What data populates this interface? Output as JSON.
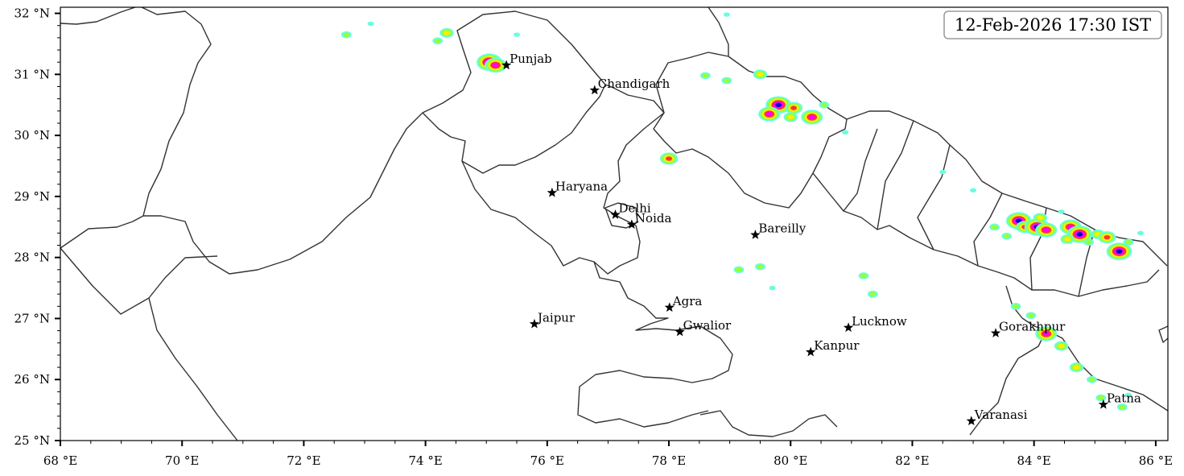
{
  "map": {
    "timestamp": "12-Feb-2026 17:30 IST",
    "extent": {
      "lon_min": 68,
      "lon_max": 86.2,
      "lat_min": 25,
      "lat_max": 32.1
    },
    "x_ticks": [
      {
        "lon": 68,
        "label": "68 °E"
      },
      {
        "lon": 70,
        "label": "70 °E"
      },
      {
        "lon": 72,
        "label": "72 °E"
      },
      {
        "lon": 74,
        "label": "74 °E"
      },
      {
        "lon": 76,
        "label": "76 °E"
      },
      {
        "lon": 78,
        "label": "78 °E"
      },
      {
        "lon": 80,
        "label": "80 °E"
      },
      {
        "lon": 82,
        "label": "82 °E"
      },
      {
        "lon": 84,
        "label": "84 °E"
      },
      {
        "lon": 86,
        "label": "86 °E"
      }
    ],
    "y_ticks": [
      {
        "lat": 25,
        "label": "25 °N"
      },
      {
        "lat": 26,
        "label": "26 °N"
      },
      {
        "lat": 27,
        "label": "27 °N"
      },
      {
        "lat": 28,
        "label": "28 °N"
      },
      {
        "lat": 29,
        "label": "29 °N"
      },
      {
        "lat": 30,
        "label": "30 °N"
      },
      {
        "lat": 31,
        "label": "31 °N"
      },
      {
        "lat": 32,
        "label": "32 °N"
      }
    ],
    "cities": [
      {
        "name": "Punjab",
        "lon": 75.33,
        "lat": 31.15
      },
      {
        "name": "Chandigarh",
        "lon": 76.78,
        "lat": 30.74
      },
      {
        "name": "Haryana",
        "lon": 76.08,
        "lat": 29.06
      },
      {
        "name": "Delhi",
        "lon": 77.12,
        "lat": 28.7
      },
      {
        "name": "Noida",
        "lon": 77.39,
        "lat": 28.54
      },
      {
        "name": "Bareilly",
        "lon": 79.42,
        "lat": 28.37
      },
      {
        "name": "Agra",
        "lon": 78.01,
        "lat": 27.18
      },
      {
        "name": "Jaipur",
        "lon": 75.79,
        "lat": 26.91
      },
      {
        "name": "Gwalior",
        "lon": 78.18,
        "lat": 26.78
      },
      {
        "name": "Lucknow",
        "lon": 80.95,
        "lat": 26.85
      },
      {
        "name": "Kanpur",
        "lon": 80.33,
        "lat": 26.45
      },
      {
        "name": "Gorakhpur",
        "lon": 83.37,
        "lat": 26.76
      },
      {
        "name": "Varanasi",
        "lon": 82.97,
        "lat": 25.32
      },
      {
        "name": "Patna",
        "lon": 85.14,
        "lat": 25.59
      }
    ],
    "precip_colors": [
      "#66ffdd",
      "#99ff33",
      "#ffee00",
      "#ff3333",
      "#ff00ff",
      "#0000cc"
    ],
    "precip_cells": [
      {
        "lon": 72.7,
        "lat": 31.65,
        "level": 1
      },
      {
        "lon": 73.1,
        "lat": 31.83,
        "level": 0
      },
      {
        "lon": 74.2,
        "lat": 31.55,
        "level": 1
      },
      {
        "lon": 74.35,
        "lat": 31.68,
        "level": 2
      },
      {
        "lon": 75.05,
        "lat": 31.2,
        "level": 5
      },
      {
        "lon": 75.15,
        "lat": 31.15,
        "level": 4
      },
      {
        "lon": 75.5,
        "lat": 31.65,
        "level": 0
      },
      {
        "lon": 78.95,
        "lat": 31.98,
        "level": 0
      },
      {
        "lon": 78.0,
        "lat": 29.62,
        "level": 3
      },
      {
        "lon": 78.6,
        "lat": 30.98,
        "level": 1
      },
      {
        "lon": 78.95,
        "lat": 30.9,
        "level": 1
      },
      {
        "lon": 79.5,
        "lat": 31.0,
        "level": 2
      },
      {
        "lon": 79.8,
        "lat": 30.5,
        "level": 5
      },
      {
        "lon": 79.65,
        "lat": 30.35,
        "level": 4
      },
      {
        "lon": 80.05,
        "lat": 30.45,
        "level": 3
      },
      {
        "lon": 80.35,
        "lat": 30.3,
        "level": 4
      },
      {
        "lon": 80.55,
        "lat": 30.5,
        "level": 1
      },
      {
        "lon": 80.0,
        "lat": 30.3,
        "level": 2
      },
      {
        "lon": 80.9,
        "lat": 30.05,
        "level": 0
      },
      {
        "lon": 79.15,
        "lat": 27.8,
        "level": 1
      },
      {
        "lon": 79.5,
        "lat": 27.85,
        "level": 1
      },
      {
        "lon": 79.7,
        "lat": 27.5,
        "level": 0
      },
      {
        "lon": 81.2,
        "lat": 27.7,
        "level": 1
      },
      {
        "lon": 81.35,
        "lat": 27.4,
        "level": 1
      },
      {
        "lon": 82.5,
        "lat": 29.4,
        "level": 0
      },
      {
        "lon": 83.0,
        "lat": 29.1,
        "level": 0
      },
      {
        "lon": 83.35,
        "lat": 28.5,
        "level": 1
      },
      {
        "lon": 83.55,
        "lat": 28.35,
        "level": 1
      },
      {
        "lon": 83.75,
        "lat": 28.6,
        "level": 5
      },
      {
        "lon": 83.85,
        "lat": 28.5,
        "level": 3
      },
      {
        "lon": 84.05,
        "lat": 28.5,
        "level": 5
      },
      {
        "lon": 84.2,
        "lat": 28.45,
        "level": 4
      },
      {
        "lon": 84.1,
        "lat": 28.65,
        "level": 2
      },
      {
        "lon": 84.45,
        "lat": 28.75,
        "level": 0
      },
      {
        "lon": 84.6,
        "lat": 28.5,
        "level": 4
      },
      {
        "lon": 84.75,
        "lat": 28.38,
        "level": 5
      },
      {
        "lon": 84.55,
        "lat": 28.3,
        "level": 2
      },
      {
        "lon": 84.9,
        "lat": 28.25,
        "level": 1
      },
      {
        "lon": 85.05,
        "lat": 28.38,
        "level": 2
      },
      {
        "lon": 85.2,
        "lat": 28.33,
        "level": 3
      },
      {
        "lon": 85.4,
        "lat": 28.1,
        "level": 5
      },
      {
        "lon": 85.55,
        "lat": 28.25,
        "level": 1
      },
      {
        "lon": 85.75,
        "lat": 28.4,
        "level": 0
      },
      {
        "lon": 83.7,
        "lat": 27.2,
        "level": 1
      },
      {
        "lon": 83.95,
        "lat": 27.05,
        "level": 1
      },
      {
        "lon": 84.2,
        "lat": 26.75,
        "level": 4
      },
      {
        "lon": 84.45,
        "lat": 26.55,
        "level": 2
      },
      {
        "lon": 84.7,
        "lat": 26.2,
        "level": 2
      },
      {
        "lon": 84.95,
        "lat": 26.0,
        "level": 1
      },
      {
        "lon": 85.1,
        "lat": 25.7,
        "level": 1
      },
      {
        "lon": 85.45,
        "lat": 25.55,
        "level": 1
      },
      {
        "lon": 85.55,
        "lat": 25.75,
        "level": 0
      }
    ]
  }
}
